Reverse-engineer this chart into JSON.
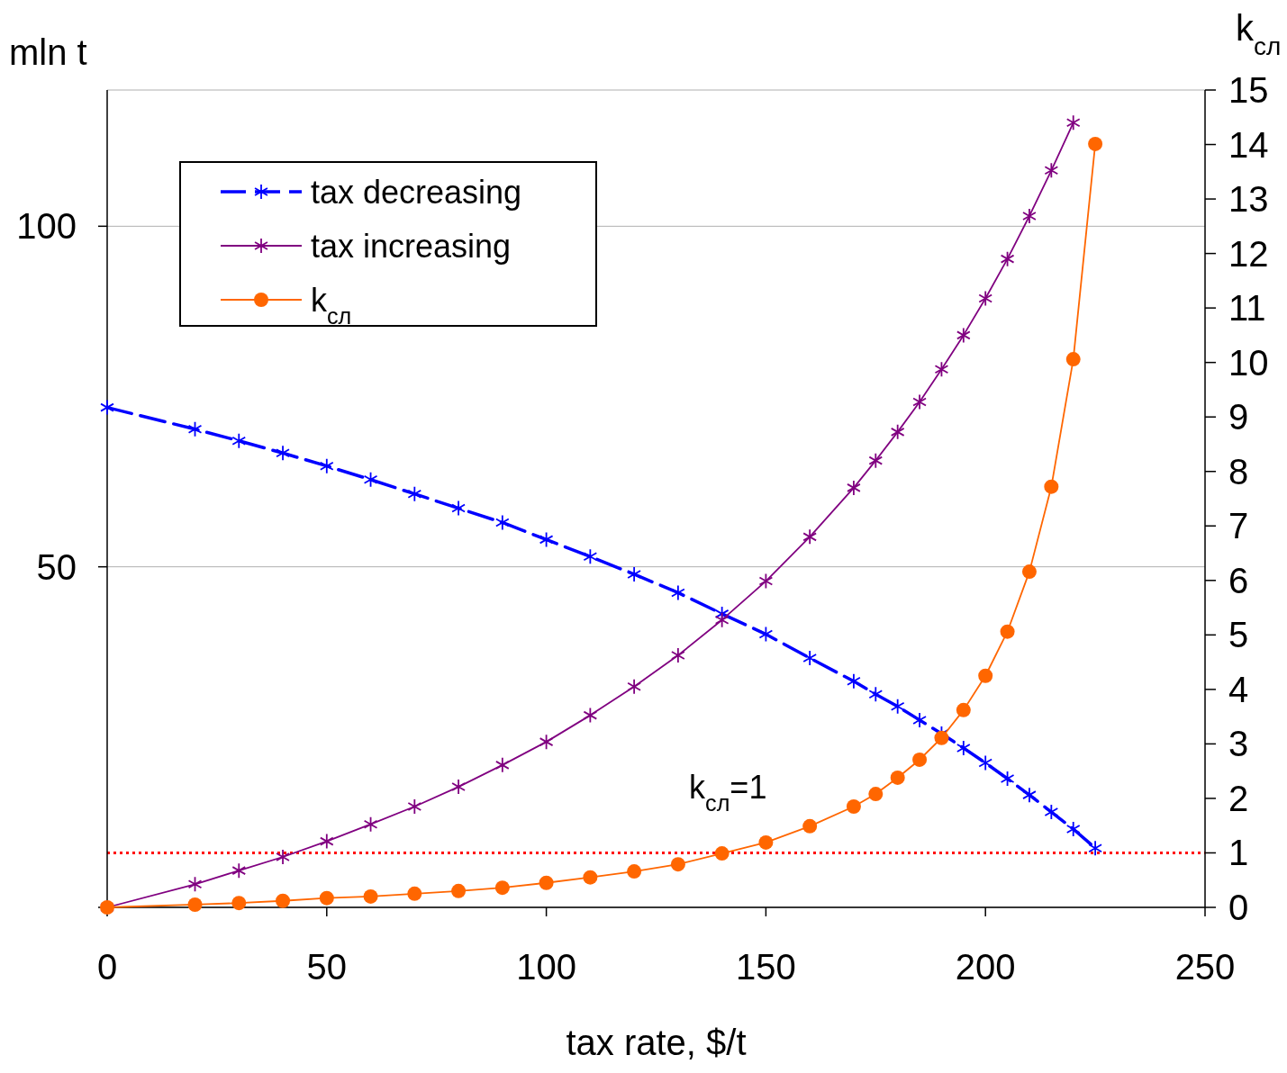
{
  "chart_data": {
    "type": "line",
    "xlabel": "tax rate, $/t",
    "ylabel": "mln t",
    "y2label": "k$_{сл}$",
    "xlim": [
      0,
      250
    ],
    "xticks": [
      0,
      50,
      100,
      150,
      200,
      250
    ],
    "ylim": [
      0,
      120
    ],
    "yticks": [
      {
        "value": 0,
        "label": null
      },
      50,
      100
    ],
    "y2lim": [
      0,
      15
    ],
    "y2ticks": [
      0,
      1,
      2,
      3,
      4,
      5,
      6,
      7,
      8,
      9,
      10,
      11,
      12,
      13,
      14,
      15
    ],
    "grid": "y",
    "legend": "top left",
    "x": [
      0,
      20,
      30,
      40,
      50,
      60,
      70,
      80,
      90,
      100,
      110,
      120,
      130,
      140,
      150,
      160,
      170,
      175,
      180,
      185,
      190,
      195,
      200,
      205,
      210,
      215,
      220,
      225
    ],
    "series": [
      {
        "name": "tax decreasing",
        "color": "#0000ff",
        "marker": "cross",
        "line_style": "dashed",
        "values": [
          73.4,
          70.2,
          68.5,
          66.7,
          64.8,
          62.8,
          60.7,
          58.6,
          56.5,
          54.0,
          51.5,
          48.9,
          46.2,
          43.1,
          40.1,
          36.6,
          33.2,
          31.3,
          29.5,
          27.5,
          25.5,
          23.4,
          21.2,
          18.9,
          16.5,
          14.0,
          11.5,
          8.7
        ]
      },
      {
        "name": "tax increasing",
        "color": "#800080",
        "marker": "cross",
        "line_style": "solid",
        "values": [
          0,
          3.4,
          5.4,
          7.4,
          9.7,
          12.2,
          14.8,
          17.7,
          20.9,
          24.3,
          28.2,
          32.4,
          37.0,
          42.2,
          47.9,
          54.4,
          61.6,
          65.6,
          69.8,
          74.2,
          79.0,
          84.0,
          89.4,
          95.2,
          101.5,
          108.2,
          115.2,
          null
        ]
      },
      {
        "name": "k$_{сл}$",
        "color": "#ff6600",
        "marker": "circle",
        "line_style": "solid",
        "axis": "y2",
        "values": [
          0,
          0.05,
          0.08,
          0.12,
          0.17,
          0.2,
          0.25,
          0.3,
          0.36,
          0.45,
          0.55,
          0.66,
          0.79,
          0.99,
          1.19,
          1.49,
          1.85,
          2.08,
          2.38,
          2.71,
          3.11,
          3.62,
          4.25,
          5.06,
          6.16,
          7.72,
          10.06,
          14.01
        ]
      }
    ],
    "ref_lines": [
      {
        "axis": "y2",
        "value": 1,
        "color": "#ff0000",
        "line_style": "dotted"
      }
    ],
    "annotations": [
      "k$_{сл}$=1"
    ]
  }
}
